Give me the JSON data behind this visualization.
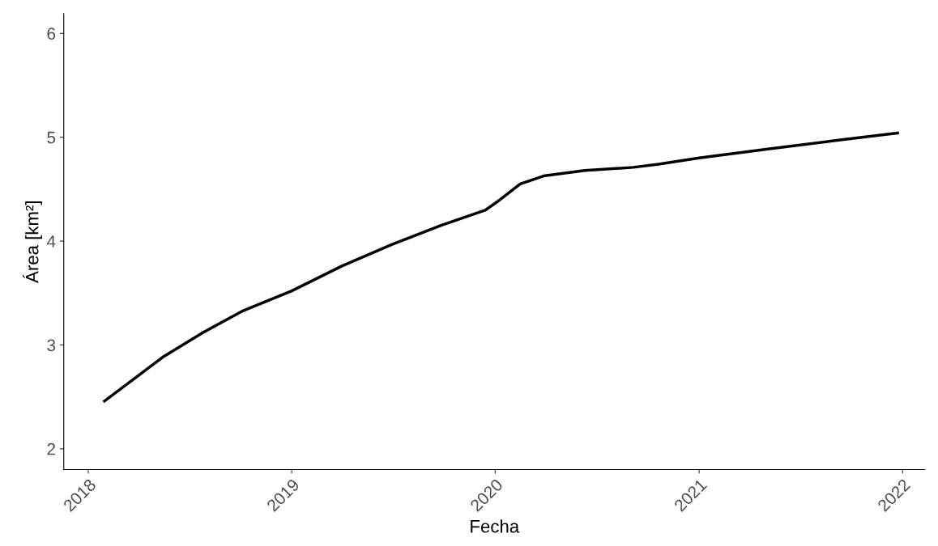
{
  "chart_data": {
    "type": "line",
    "xlabel": "Fecha",
    "ylabel": "Área [km²]",
    "x": [
      "2018-01-30",
      "2018-05-14",
      "2018-07-26",
      "2018-10-06",
      "2019-01-01",
      "2019-04-01",
      "2019-07-01",
      "2019-09-25",
      "2019-12-15",
      "2020-01-05",
      "2020-02-15",
      "2020-03-30",
      "2020-06-10",
      "2020-09-05",
      "2020-10-20",
      "2021-01-01",
      "2021-05-10",
      "2021-09-05",
      "2021-12-23"
    ],
    "series": [
      {
        "color": "#000000",
        "values": [
          2.46,
          2.88,
          3.12,
          3.33,
          3.52,
          3.76,
          3.97,
          4.15,
          4.3,
          4.38,
          4.55,
          4.63,
          4.68,
          4.71,
          4.74,
          4.8,
          4.89,
          4.97,
          5.04
        ]
      }
    ],
    "xlim": [
      "2017-11-18",
      "2022-02-10"
    ],
    "xticks": [
      "2018",
      "2019",
      "2020",
      "2021",
      "2022"
    ],
    "ylim": [
      1.8,
      6.19
    ],
    "yticks": [
      2,
      3,
      4,
      5,
      6
    ],
    "grid": false,
    "marker": "none",
    "line_style": "solid"
  }
}
